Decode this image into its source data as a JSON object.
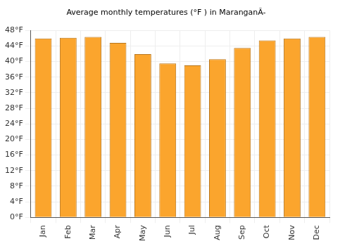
{
  "chart_data": {
    "type": "bar",
    "title": "Average monthly temperatures (°F ) in MaranganÃ-",
    "categories": [
      "Jan",
      "Feb",
      "Mar",
      "Apr",
      "May",
      "Jun",
      "Jul",
      "Aug",
      "Sep",
      "Oct",
      "Nov",
      "Dec"
    ],
    "values": [
      45.9,
      46.1,
      46.3,
      44.8,
      41.9,
      39.5,
      39.0,
      40.6,
      43.5,
      45.4,
      45.9,
      46.3
    ],
    "color": "#fba52d",
    "ylim": [
      0,
      48
    ],
    "yticks": [
      {
        "value": 0,
        "label": "0°F"
      },
      {
        "value": 4,
        "label": "4°F"
      },
      {
        "value": 8,
        "label": "8°F"
      },
      {
        "value": 12,
        "label": "12°F"
      },
      {
        "value": 16,
        "label": "16°F"
      },
      {
        "value": 20,
        "label": "20°F"
      },
      {
        "value": 24,
        "label": "24°F"
      },
      {
        "value": 28,
        "label": "28°F"
      },
      {
        "value": 32,
        "label": "32°F"
      },
      {
        "value": 36,
        "label": "36°F"
      },
      {
        "value": 40,
        "label": "40°F"
      },
      {
        "value": 44,
        "label": "44°F"
      },
      {
        "value": 48,
        "label": "48°F"
      }
    ],
    "grid": true
  }
}
